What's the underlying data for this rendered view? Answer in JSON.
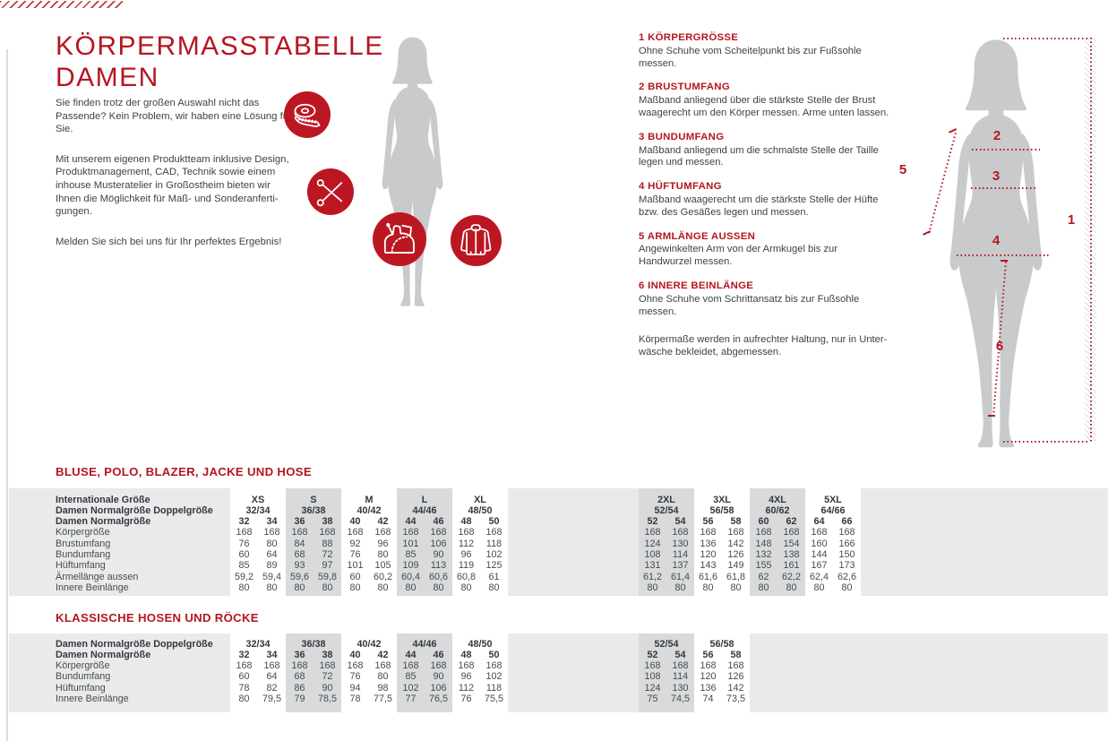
{
  "colors": {
    "accent_red": "#b5161f",
    "circle_red": "#bb1722",
    "silhouette_gray": "#c8cacc",
    "band_gray": "#e9eaeb",
    "column_gray": "#d8dadb",
    "text_dark": "#3e4245"
  },
  "header": {
    "title_line1": "KÖRPERMASSTABELLE",
    "title_line2": "DAMEN",
    "intro_paragraphs": [
      "Sie finden trotz der großen Auswahl nicht das Passende? Kein Problem, wir haben eine Lösung für Sie.",
      "Mit unserem eigenen Produktteam inklusive Design, Produktmanagement, CAD, Technik sowie einem inhouse Musteratelier in Großostheim bieten wir Ihnen die Möglichkeit für Maß- und Sonderanferti­gungen.",
      "Melden Sie sich bei uns für Ihr perfektes Ergebnis!"
    ]
  },
  "icons": {
    "list": [
      "measuring-tape-icon",
      "scissors-icon",
      "sewing-pattern-icon",
      "jacket-icon"
    ]
  },
  "instructions": {
    "items": [
      {
        "num": "1",
        "title": "KÖRPERGRÖSSE",
        "text": "Ohne Schuhe vom Scheitelpunkt bis zur Fußsohle messen."
      },
      {
        "num": "2",
        "title": "BRUSTUMFANG",
        "text": "Maßband anliegend über die stärkste Stelle der Brust waagerecht um den Körper messen. Arme unten lassen."
      },
      {
        "num": "3",
        "title": "BUNDUMFANG",
        "text": "Maßband anliegend um die schmalste Stelle der Taille legen und messen."
      },
      {
        "num": "4",
        "title": "HÜFTUMFANG",
        "text": "Maßband waagerecht um die stärkste Stelle der Hüfte bzw. des Gesäßes legen und messen."
      },
      {
        "num": "5",
        "title": "ARMLÄNGE AUSSEN",
        "text": "Angewinkelten Arm von der Armkugel bis zur Handwurzel messen."
      },
      {
        "num": "6",
        "title": "INNERE BEINLÄNGE",
        "text": "Ohne Schuhe vom Schrittansatz bis zur Fußsohle messen."
      }
    ],
    "note": "Körpermaße werden in aufrechter Haltung, nur in Unter­wäsche bekleidet, abgemessen."
  },
  "diagram": {
    "numbers": [
      "1",
      "2",
      "3",
      "4",
      "5",
      "6"
    ]
  },
  "tables": [
    {
      "title": "BLUSE, POLO, BLAZER, JACKE UND HOSE",
      "label_international": "Internationale Größe",
      "label_double": "Damen Normalgröße Doppelgröße",
      "label_singles": "Damen Normalgröße",
      "groups": [
        {
          "international": "XS",
          "double": "32/34",
          "singles": [
            "32",
            "34"
          ]
        },
        {
          "international": "S",
          "double": "36/38",
          "singles": [
            "36",
            "38"
          ]
        },
        {
          "international": "M",
          "double": "40/42",
          "singles": [
            "40",
            "42"
          ]
        },
        {
          "international": "L",
          "double": "44/46",
          "singles": [
            "44",
            "46"
          ]
        },
        {
          "international": "XL",
          "double": "48/50",
          "singles": [
            "48",
            "50"
          ]
        },
        {
          "international": "2XL",
          "double": "52/54",
          "singles": [
            "52",
            "54"
          ]
        },
        {
          "international": "3XL",
          "double": "56/58",
          "singles": [
            "56",
            "58"
          ]
        },
        {
          "international": "4XL",
          "double": "60/62",
          "singles": [
            "60",
            "62"
          ]
        },
        {
          "international": "5XL",
          "double": "64/66",
          "singles": [
            "64",
            "66"
          ]
        }
      ],
      "rows": [
        {
          "label": "Körpergröße",
          "values": [
            "168",
            "168",
            "168",
            "168",
            "168",
            "168",
            "168",
            "168",
            "168",
            "168",
            "168",
            "168",
            "168",
            "168",
            "168",
            "168",
            "168",
            "168"
          ]
        },
        {
          "label": "Brustumfang",
          "values": [
            "76",
            "80",
            "84",
            "88",
            "92",
            "96",
            "101",
            "106",
            "112",
            "118",
            "124",
            "130",
            "136",
            "142",
            "148",
            "154",
            "160",
            "166"
          ]
        },
        {
          "label": "Bundumfang",
          "values": [
            "60",
            "64",
            "68",
            "72",
            "76",
            "80",
            "85",
            "90",
            "96",
            "102",
            "108",
            "114",
            "120",
            "126",
            "132",
            "138",
            "144",
            "150"
          ]
        },
        {
          "label": "Hüftumfang",
          "values": [
            "85",
            "89",
            "93",
            "97",
            "101",
            "105",
            "109",
            "113",
            "119",
            "125",
            "131",
            "137",
            "143",
            "149",
            "155",
            "161",
            "167",
            "173"
          ]
        },
        {
          "label": "Ärmellänge aussen",
          "values": [
            "59,2",
            "59,4",
            "59,6",
            "59,8",
            "60",
            "60,2",
            "60,4",
            "60,6",
            "60,8",
            "61",
            "61,2",
            "61,4",
            "61,6",
            "61,8",
            "62",
            "62,2",
            "62,4",
            "62,6"
          ]
        },
        {
          "label": "Innere Beinlänge",
          "values": [
            "80",
            "80",
            "80",
            "80",
            "80",
            "80",
            "80",
            "80",
            "80",
            "80",
            "80",
            "80",
            "80",
            "80",
            "80",
            "80",
            "80",
            "80"
          ]
        }
      ]
    },
    {
      "title": "KLASSISCHE HOSEN UND RÖCKE",
      "label_double": "Damen Normalgröße Doppelgröße",
      "label_singles": "Damen Normalgröße",
      "groups": [
        {
          "double": "32/34",
          "singles": [
            "32",
            "34"
          ]
        },
        {
          "double": "36/38",
          "singles": [
            "36",
            "38"
          ]
        },
        {
          "double": "40/42",
          "singles": [
            "40",
            "42"
          ]
        },
        {
          "double": "44/46",
          "singles": [
            "44",
            "46"
          ]
        },
        {
          "double": "48/50",
          "singles": [
            "48",
            "50"
          ]
        },
        {
          "double": "52/54",
          "singles": [
            "52",
            "54"
          ]
        },
        {
          "double": "56/58",
          "singles": [
            "56",
            "58"
          ]
        }
      ],
      "rows": [
        {
          "label": "Körpergröße",
          "values": [
            "168",
            "168",
            "168",
            "168",
            "168",
            "168",
            "168",
            "168",
            "168",
            "168",
            "168",
            "168",
            "168",
            "168"
          ]
        },
        {
          "label": "Bundumfang",
          "values": [
            "60",
            "64",
            "68",
            "72",
            "76",
            "80",
            "85",
            "90",
            "96",
            "102",
            "108",
            "114",
            "120",
            "126"
          ]
        },
        {
          "label": "Hüftumfang",
          "values": [
            "78",
            "82",
            "86",
            "90",
            "94",
            "98",
            "102",
            "106",
            "112",
            "118",
            "124",
            "130",
            "136",
            "142"
          ]
        },
        {
          "label": "Innere Beinlänge",
          "values": [
            "80",
            "79,5",
            "79",
            "78,5",
            "78",
            "77,5",
            "77",
            "76,5",
            "76",
            "75,5",
            "75",
            "74,5",
            "74",
            "73,5"
          ]
        }
      ]
    }
  ]
}
